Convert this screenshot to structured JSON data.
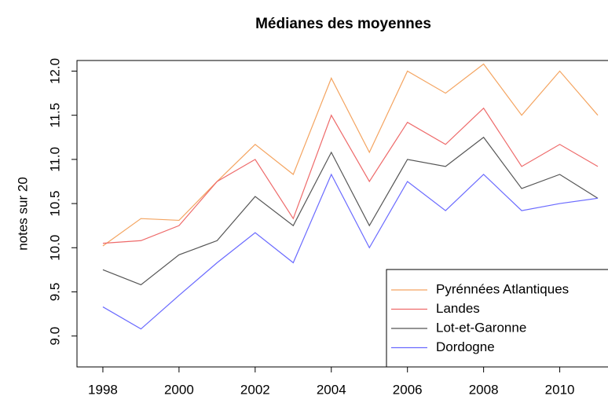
{
  "chart_data": {
    "type": "line",
    "title": "Médianes des moyennes",
    "y_label": "notes sur 20",
    "x": [
      1998,
      1999,
      2000,
      2001,
      2002,
      2003,
      2004,
      2005,
      2006,
      2007,
      2008,
      2009,
      2010,
      2011
    ],
    "series": [
      {
        "name": "Pyrénnées Atlantiques",
        "color": "#f4a460",
        "values": [
          10.02,
          10.33,
          10.31,
          10.75,
          11.17,
          10.83,
          11.92,
          11.08,
          12.0,
          11.75,
          12.08,
          11.5,
          12.0,
          11.5
        ]
      },
      {
        "name": "Landes",
        "color": "#ee6a6a",
        "values": [
          10.05,
          10.08,
          10.25,
          10.75,
          11.0,
          10.33,
          11.5,
          10.75,
          11.42,
          11.17,
          11.58,
          10.92,
          11.17,
          10.92
        ]
      },
      {
        "name": "Lot-et-Garonne",
        "color": "#555555",
        "values": [
          9.75,
          9.58,
          9.92,
          10.08,
          10.58,
          10.25,
          11.08,
          10.25,
          11.0,
          10.92,
          11.25,
          10.67,
          10.83,
          10.56
        ]
      },
      {
        "name": "Dordogne",
        "color": "#6a6aff",
        "values": [
          9.33,
          9.08,
          9.46,
          9.83,
          10.17,
          9.83,
          10.83,
          10.0,
          10.75,
          10.42,
          10.83,
          10.42,
          10.5,
          10.56
        ]
      }
    ],
    "xlim": [
      1997.32,
      2011.68
    ],
    "xticks": [
      1998,
      2000,
      2002,
      2004,
      2006,
      2008,
      2010
    ],
    "ylim": [
      8.65,
      12.12
    ],
    "yticks": [
      {
        "value": 9,
        "label": "9.0"
      },
      {
        "value": 9.5,
        "label": "9.5"
      },
      {
        "value": 10,
        "label": "10.0"
      },
      {
        "value": 10.5,
        "label": "10.5"
      },
      {
        "value": 11,
        "label": "11.0"
      },
      {
        "value": 11.5,
        "label": "11.5"
      },
      {
        "value": 12,
        "label": "12.0"
      }
    ],
    "legend": "bottomright"
  }
}
